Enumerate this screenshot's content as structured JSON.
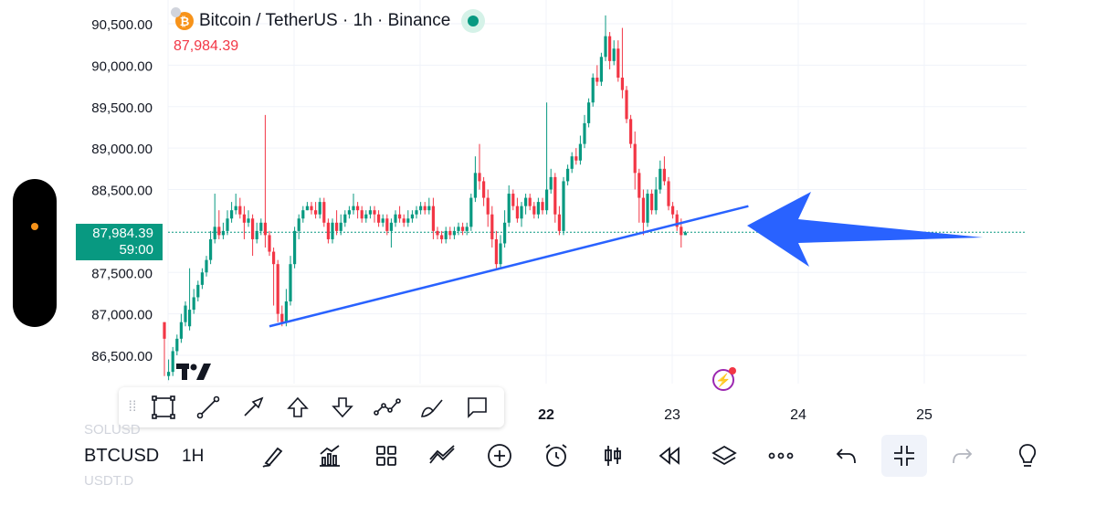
{
  "header": {
    "symbol_title": "Bitcoin / TetherUS · 1h · Binance",
    "last_price": "87,984.39",
    "status_color": "#089981"
  },
  "price_tag": {
    "price": "87,984.39",
    "countdown": "59:00"
  },
  "colors": {
    "up": "#089981",
    "down": "#f23645",
    "trendline": "#2962ff",
    "arrow": "#2962ff"
  },
  "toolbar": {
    "symbol": "BTCUSD",
    "interval": "1H",
    "ghost_top": "SOLUSD",
    "ghost_bottom": "USDT.D",
    "drawing_tools": [
      "rectangle-icon",
      "line-icon",
      "arrow-line-icon",
      "arrow-up-icon",
      "arrow-down-icon",
      "path-icon",
      "brush-icon",
      "callout-icon"
    ],
    "bottom_tools": [
      "brush-icon",
      "indicators-icon",
      "templates-icon",
      "compare-icon",
      "add-icon",
      "alert-icon",
      "candles-icon",
      "replay-icon",
      "layers-icon",
      "more-icon",
      "undo-icon",
      "fullscreen-exit-icon",
      "redo-icon",
      "idea-icon"
    ]
  },
  "chart_data": {
    "type": "candlestick",
    "title": "Bitcoin / TetherUS · 1h · Binance",
    "y_ticks": [
      "90,500.00",
      "90,000.00",
      "89,500.00",
      "89,000.00",
      "88,500.00",
      "87,500.00",
      "87,000.00",
      "86,500.00"
    ],
    "y_tick_values": [
      90500,
      90000,
      89500,
      89000,
      88500,
      87500,
      87000,
      86500
    ],
    "x_ticks": [
      "22",
      "23",
      "24",
      "25"
    ],
    "ylim": [
      86200,
      90700
    ],
    "last_price": 87984.39,
    "grid": true,
    "candles": [
      [
        86900,
        86700,
        86900,
        86250
      ],
      [
        86250,
        86300,
        86450,
        86200
      ],
      [
        86300,
        86550,
        86600,
        86250
      ],
      [
        86550,
        86700,
        86750,
        86500
      ],
      [
        86700,
        86900,
        87000,
        86650
      ],
      [
        86900,
        87100,
        87150,
        86850
      ],
      [
        86850,
        87050,
        87550,
        86800
      ],
      [
        87050,
        87200,
        87300,
        87000
      ],
      [
        87200,
        87350,
        87400,
        87150
      ],
      [
        87350,
        87500,
        87550,
        87300
      ],
      [
        87500,
        87650,
        87700,
        87450
      ],
      [
        87650,
        87900,
        88000,
        87600
      ],
      [
        87900,
        88050,
        88450,
        87850
      ],
      [
        88050,
        87950,
        88250,
        87900
      ],
      [
        87950,
        88000,
        88100,
        87900
      ],
      [
        88000,
        88150,
        88250,
        87950
      ],
      [
        88150,
        88250,
        88350,
        88100
      ],
      [
        88250,
        88300,
        88450,
        88200
      ],
      [
        88300,
        88200,
        88400,
        88150
      ],
      [
        88200,
        88100,
        88300,
        87900
      ],
      [
        88100,
        88150,
        88250,
        88050
      ],
      [
        88150,
        87900,
        88200,
        87700
      ],
      [
        87900,
        88000,
        88100,
        87850
      ],
      [
        88000,
        88100,
        88150,
        87950
      ],
      [
        88100,
        87950,
        89400,
        87800
      ],
      [
        87950,
        87750,
        88000,
        87700
      ],
      [
        87750,
        87600,
        87800,
        87100
      ],
      [
        87600,
        87000,
        87650,
        86900
      ],
      [
        87000,
        86900,
        87100,
        86850
      ],
      [
        86900,
        87150,
        87300,
        86850
      ],
      [
        87150,
        87600,
        87700,
        87100
      ],
      [
        87600,
        88000,
        88050,
        87550
      ],
      [
        88000,
        88150,
        88200,
        87900
      ],
      [
        88150,
        88250,
        88300,
        88100
      ],
      [
        88250,
        88300,
        88350,
        88250
      ],
      [
        88300,
        88250,
        88350,
        88200
      ],
      [
        88250,
        88200,
        88350,
        88150
      ],
      [
        88200,
        88350,
        88400,
        88150
      ],
      [
        88350,
        88100,
        88400,
        88050
      ],
      [
        88100,
        87900,
        88150,
        87850
      ],
      [
        87900,
        88100,
        88150,
        87850
      ],
      [
        88100,
        88000,
        88250,
        87950
      ],
      [
        88000,
        88100,
        88200,
        87950
      ],
      [
        88100,
        88200,
        88250,
        88050
      ],
      [
        88200,
        88250,
        88300,
        88150
      ],
      [
        88250,
        88300,
        88450,
        88200
      ],
      [
        88300,
        88250,
        88350,
        88150
      ],
      [
        88250,
        88150,
        88300,
        88100
      ],
      [
        88150,
        88200,
        88250,
        88100
      ],
      [
        88200,
        88250,
        88300,
        88150
      ],
      [
        88250,
        88200,
        88300,
        88100
      ],
      [
        88200,
        88100,
        88250,
        88050
      ],
      [
        88100,
        88150,
        88200,
        88050
      ],
      [
        88150,
        88000,
        88200,
        87950
      ],
      [
        88000,
        88100,
        88150,
        87800
      ],
      [
        88100,
        88200,
        88250,
        88050
      ],
      [
        88200,
        88150,
        88300,
        88100
      ],
      [
        88150,
        88100,
        88200,
        88050
      ],
      [
        88100,
        88150,
        88250,
        88050
      ],
      [
        88150,
        88200,
        88250,
        88100
      ],
      [
        88200,
        88250,
        88300,
        88150
      ],
      [
        88250,
        88300,
        88350,
        88200
      ],
      [
        88300,
        88250,
        88350,
        88200
      ],
      [
        88250,
        88300,
        88400,
        88200
      ],
      [
        88300,
        88000,
        88400,
        87900
      ],
      [
        88000,
        87950,
        88050,
        87900
      ],
      [
        87950,
        87900,
        88000,
        87850
      ],
      [
        87900,
        88000,
        88050,
        87850
      ],
      [
        88000,
        87950,
        88050,
        87900
      ],
      [
        87950,
        88000,
        88050,
        87900
      ],
      [
        88000,
        88050,
        88100,
        87950
      ],
      [
        88050,
        88000,
        88100,
        87950
      ],
      [
        88000,
        88050,
        88100,
        87950
      ],
      [
        88050,
        88400,
        88450,
        88000
      ],
      [
        88400,
        88700,
        88900,
        88350
      ],
      [
        88700,
        88600,
        89050,
        88500
      ],
      [
        88600,
        88400,
        88650,
        88300
      ],
      [
        88400,
        88200,
        88500,
        88050
      ],
      [
        88200,
        87900,
        88300,
        87800
      ],
      [
        87900,
        87600,
        88000,
        87550
      ],
      [
        87600,
        87850,
        87950,
        87550
      ],
      [
        87850,
        88100,
        88250,
        87800
      ],
      [
        88100,
        88450,
        88550,
        88050
      ],
      [
        88450,
        88300,
        88500,
        88250
      ],
      [
        88300,
        88150,
        88400,
        88100
      ],
      [
        88150,
        88300,
        88350,
        88050
      ],
      [
        88300,
        88400,
        88450,
        88200
      ],
      [
        88400,
        88300,
        88450,
        88250
      ],
      [
        88300,
        88200,
        88350,
        88150
      ],
      [
        88200,
        88350,
        88400,
        88150
      ],
      [
        88350,
        88250,
        88400,
        88200
      ],
      [
        88250,
        88500,
        89550,
        88200
      ],
      [
        88500,
        88650,
        88750,
        88450
      ],
      [
        88650,
        88200,
        88700,
        88100
      ],
      [
        88200,
        88000,
        88300,
        87950
      ],
      [
        88000,
        88600,
        88650,
        87950
      ],
      [
        88600,
        88750,
        88800,
        88550
      ],
      [
        88750,
        88900,
        88950,
        88700
      ],
      [
        88900,
        88850,
        89000,
        88800
      ],
      [
        88850,
        89050,
        89150,
        88800
      ],
      [
        89050,
        89300,
        89400,
        89000
      ],
      [
        89300,
        89550,
        89600,
        89250
      ],
      [
        89550,
        89850,
        89900,
        89500
      ],
      [
        89850,
        89800,
        90000,
        89750
      ],
      [
        89800,
        90100,
        90150,
        89750
      ],
      [
        90100,
        90350,
        90600,
        90050
      ],
      [
        90350,
        90050,
        90400,
        89950
      ],
      [
        90050,
        90200,
        90300,
        90000
      ],
      [
        90200,
        89850,
        90300,
        89800
      ],
      [
        89850,
        89700,
        90450,
        89600
      ],
      [
        89700,
        89350,
        89750,
        89300
      ],
      [
        89350,
        89050,
        89400,
        89000
      ],
      [
        89050,
        88700,
        89200,
        88500
      ],
      [
        88700,
        88400,
        88750,
        88100
      ],
      [
        88400,
        88100,
        88500,
        87950
      ],
      [
        88100,
        88450,
        88500,
        88050
      ],
      [
        88450,
        88250,
        88500,
        88200
      ],
      [
        88250,
        88500,
        88650,
        88200
      ],
      [
        88500,
        88750,
        88850,
        88450
      ],
      [
        88750,
        88600,
        88900,
        88550
      ],
      [
        88600,
        88300,
        88650,
        88250
      ],
      [
        88300,
        88200,
        88350,
        88150
      ],
      [
        88200,
        88050,
        88250,
        88000
      ],
      [
        88050,
        87950,
        88150,
        87800
      ],
      [
        87950,
        87980,
        88000,
        87950
      ]
    ],
    "trendline": {
      "start": [
        25,
        86850
      ],
      "end": [
        139,
        88300
      ],
      "label": ""
    }
  }
}
